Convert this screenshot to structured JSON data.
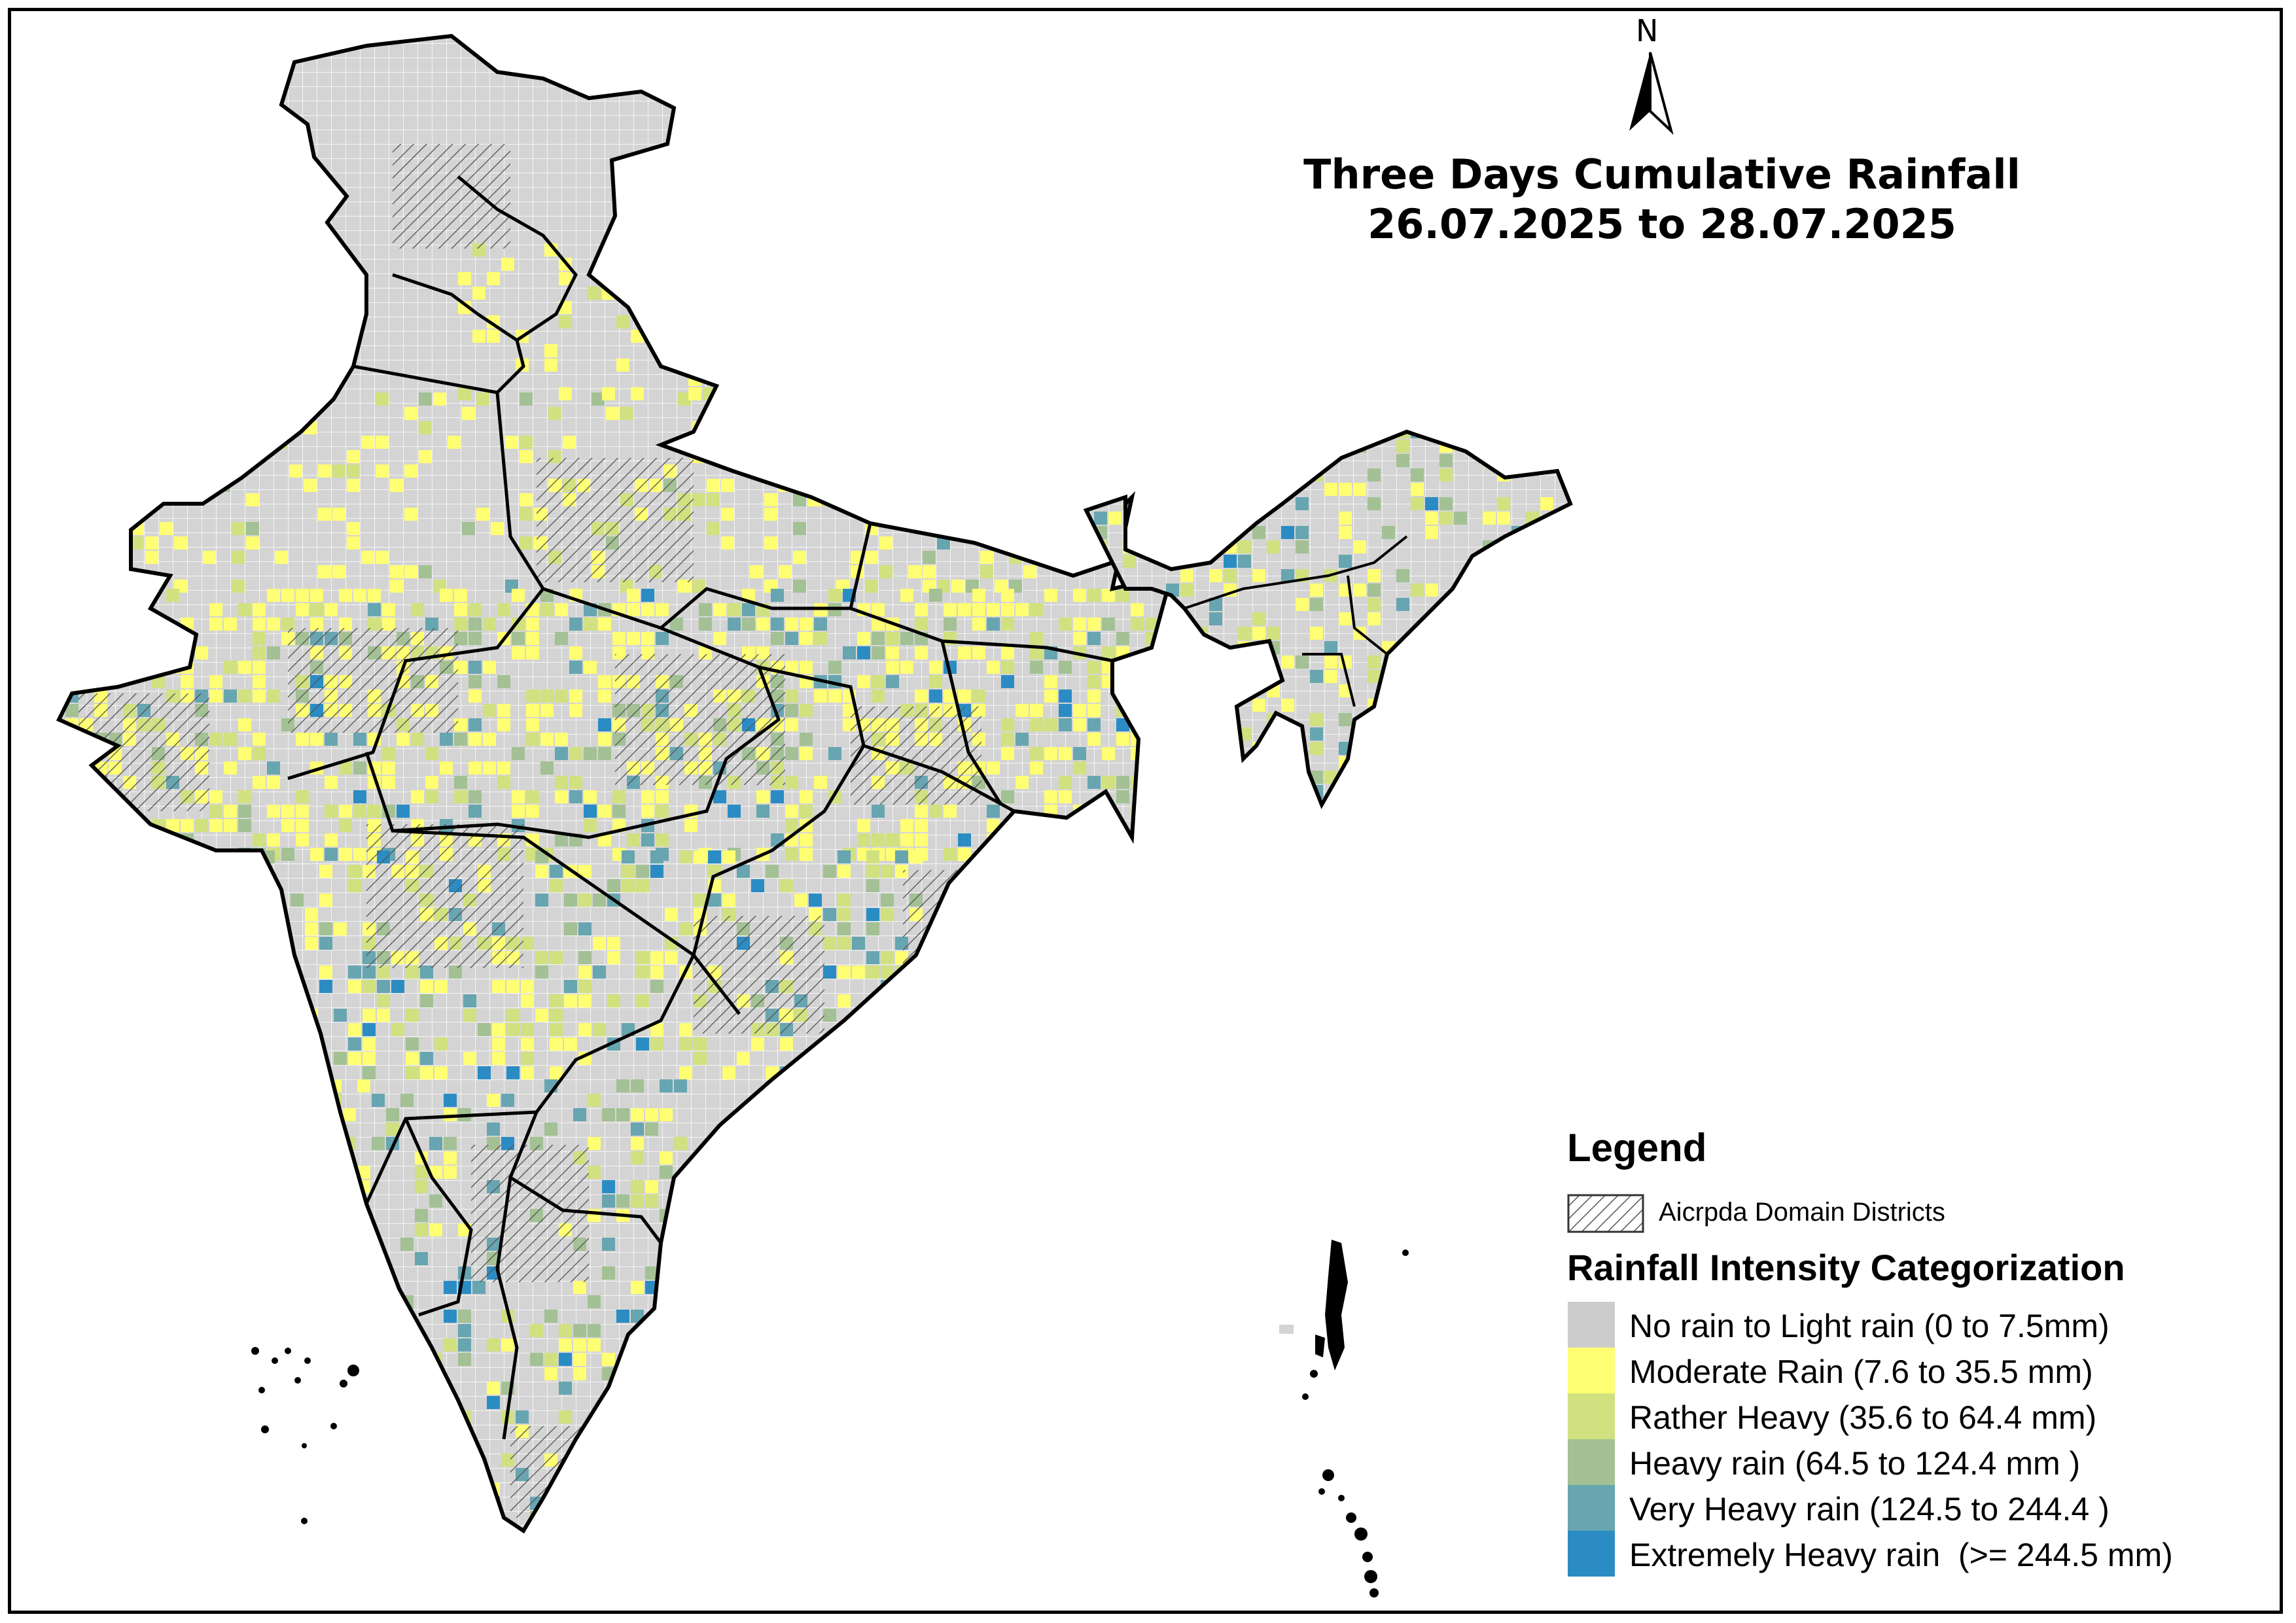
{
  "title": {
    "line1": "Three Days Cumulative Rainfall",
    "line2": "26.07.2025 to 28.07.2025"
  },
  "north_arrow": {
    "label": "N"
  },
  "legend": {
    "heading": "Legend",
    "domain_label": "Aicrpda Domain Districts",
    "categories_heading": "Rainfall Intensity Categorization",
    "categories": [
      {
        "label": "No rain to Light rain (0 to 7.5mm)",
        "color": "#cccccc"
      },
      {
        "label": "Moderate Rain (7.6 to 35.5 mm)",
        "color": "#ffff73"
      },
      {
        "label": "Rather Heavy (35.6 to 64.4 mm)",
        "color": "#d1e17f"
      },
      {
        "label": "Heavy rain (64.5 to 124.4 mm )",
        "color": "#a3c194"
      },
      {
        "label": "Very Heavy rain (124.5 to 244.4 )",
        "color": "#67a5b1"
      },
      {
        "label": "Extremely Heavy rain  (>= 244.5 mm)",
        "color": "#2b8cc4"
      }
    ]
  },
  "colors": {
    "boundary": "#000000",
    "hatch": "#555555"
  }
}
